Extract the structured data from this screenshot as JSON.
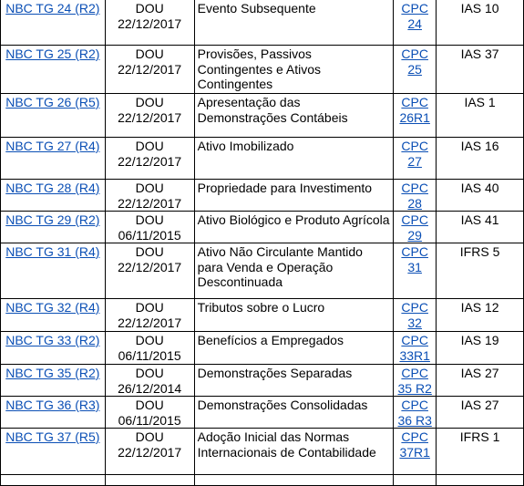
{
  "rows": [
    {
      "norm": "NBC TG 24 (R2)",
      "dou": "DOU",
      "date": "22/12/2017",
      "title": "Evento Subsequente",
      "cpc": "CPC 24",
      "intl": "IAS 10"
    },
    {
      "norm": "NBC TG 25 (R2)",
      "dou": "DOU",
      "date": "22/12/2017",
      "title": "Provisões, Passivos Contingentes e Ativos Contingentes",
      "cpc": "CPC 25",
      "intl": "IAS 37"
    },
    {
      "norm": "NBC TG 26 (R5)",
      "dou": "DOU",
      "date": "22/12/2017",
      "title": "Apresentação das Demonstrações Contábeis",
      "cpc": "CPC 26R1",
      "intl": "IAS 1"
    },
    {
      "norm": "NBC TG 27 (R4)",
      "dou": "DOU",
      "date": "22/12/2017",
      "title": "Ativo Imobilizado",
      "cpc": "CPC 27",
      "intl": "IAS 16"
    },
    {
      "norm": "NBC TG 28 (R4)",
      "dou": "DOU",
      "date": "22/12/2017",
      "title": "Propriedade para Investimento",
      "cpc": "CPC 28",
      "intl": "IAS 40"
    },
    {
      "norm": "NBC TG 29 (R2)",
      "dou": "DOU",
      "date": "06/11/2015",
      "title": "Ativo Biológico e Produto Agrícola",
      "cpc": "CPC 29",
      "intl": "IAS 41"
    },
    {
      "norm": "NBC TG 31 (R4)",
      "dou": "DOU",
      "date": "22/12/2017",
      "title": "Ativo Não Circulante Mantido para Venda e Operação Descontinuada",
      "cpc": "CPC 31",
      "intl": "IFRS 5"
    },
    {
      "norm": "NBC TG 32 (R4)",
      "dou": "DOU",
      "date": "22/12/2017",
      "title": "Tributos sobre o Lucro",
      "cpc": "CPC 32",
      "intl": "IAS 12"
    },
    {
      "norm": "NBC TG 33 (R2)",
      "dou": "DOU",
      "date": "06/11/2015",
      "title": "Benefícios a Empregados",
      "cpc": "CPC 33R1",
      "intl": "IAS 19"
    },
    {
      "norm": "NBC TG 35 (R2)",
      "dou": "DOU",
      "date": "26/12/2014",
      "title": "Demonstrações Separadas",
      "cpc": "CPC 35 R2",
      "intl": "IAS 27"
    },
    {
      "norm": "NBC TG 36 (R3)",
      "dou": "DOU",
      "date": "06/11/2015",
      "title": "Demonstrações Consolidadas",
      "cpc": "CPC 36 R3",
      "intl": "IAS 27"
    },
    {
      "norm": "NBC TG 37 (R5)",
      "dou": "DOU",
      "date": "22/12/2017",
      "title": "Adoção Inicial das Normas Internacionais de Contabilidade",
      "cpc": "CPC 37R1",
      "intl": "IFRS 1"
    }
  ]
}
